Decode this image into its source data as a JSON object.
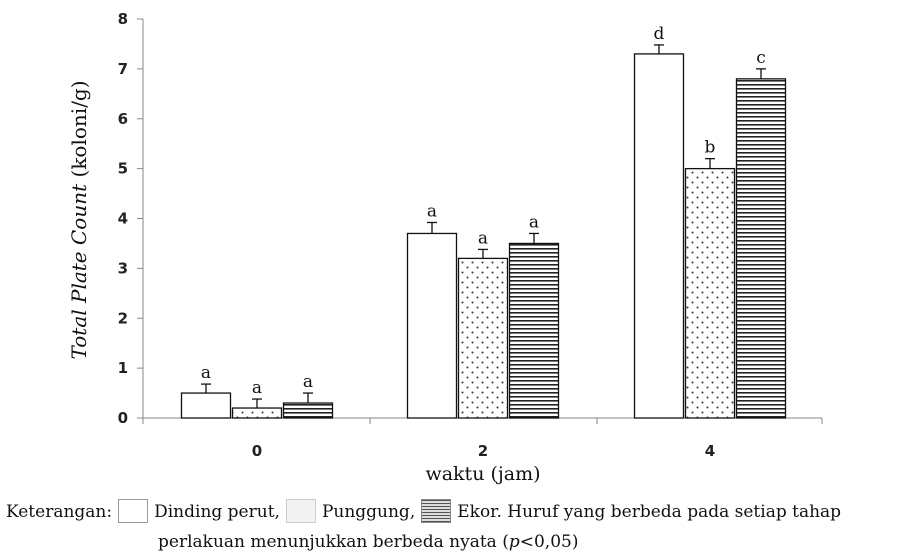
{
  "chart_data": {
    "type": "bar",
    "xlabel": "waktu (jam)",
    "ylabel_italic": "Total Plate Count",
    "ylabel_rest": " (koloni/g)",
    "ylim": [
      0,
      8
    ],
    "yticks": [
      "0",
      "1",
      "2",
      "3",
      "4",
      "5",
      "6",
      "7",
      "8"
    ],
    "categories": [
      "0",
      "2",
      "4"
    ],
    "series": [
      {
        "name": "Dinding perut",
        "pattern": "plain",
        "values": [
          0.5,
          3.7,
          7.3
        ],
        "errors": [
          0.18,
          0.22,
          0.18
        ],
        "letters": [
          "a",
          "a",
          "d"
        ]
      },
      {
        "name": "Punggung",
        "pattern": "dots",
        "values": [
          0.2,
          3.2,
          5.0
        ],
        "errors": [
          0.18,
          0.18,
          0.2
        ],
        "letters": [
          "a",
          "a",
          "b"
        ]
      },
      {
        "name": "Ekor",
        "pattern": "stripes",
        "values": [
          0.3,
          3.5,
          6.8
        ],
        "errors": [
          0.2,
          0.2,
          0.2
        ],
        "letters": [
          "a",
          "a",
          "c"
        ]
      }
    ],
    "grid": false
  },
  "caption": {
    "prefix": "Keterangan:",
    "legend_1": "Dinding perut,",
    "legend_2": "Punggung,",
    "legend_3": "Ekor.",
    "note_line1": "Huruf yang berbeda pada setiap tahap",
    "note_line2_start": "perlakuan  menunjukkan berbeda  nyata (",
    "p_symbol": "p",
    "note_line2_end": "<0,05)"
  }
}
